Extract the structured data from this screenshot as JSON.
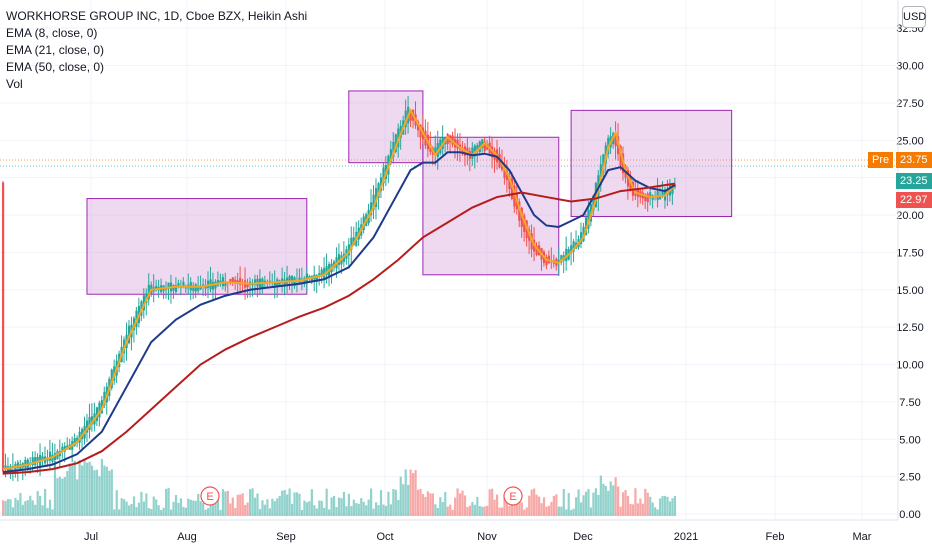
{
  "header": {
    "title": "WORKHORSE GROUP INC, 1D, Cboe BZX, Heikin Ashi",
    "indicators": [
      "EMA (8, close, 0)",
      "EMA (21, close, 0)",
      "EMA (50, close, 0)",
      "Vol"
    ],
    "currency_button": "USD"
  },
  "price_tags": [
    {
      "label": "Pre",
      "value": "23.75",
      "color": "#f57c00"
    },
    {
      "label": "",
      "value": "23.25",
      "color": "#26a69a"
    },
    {
      "label": "",
      "value": "22.97",
      "color": "#ef5350"
    }
  ],
  "chart_data": {
    "type": "candlestick",
    "title": "WORKHORSE GROUP INC, 1D, Cboe BZX, Heikin Ashi",
    "y_ticks": [
      "0.00",
      "2.50",
      "5.00",
      "7.50",
      "10.00",
      "12.50",
      "15.00",
      "17.50",
      "20.00",
      "22.50",
      "25.00",
      "27.50",
      "30.00",
      "32.50"
    ],
    "ylim": [
      0,
      32.5
    ],
    "x_ticks": [
      "Jul",
      "Aug",
      "Sep",
      "Oct",
      "Nov",
      "Dec",
      "2021",
      "Feb",
      "Mar"
    ],
    "series": [
      {
        "name": "EMA (8, close, 0)",
        "color": "#f5a623",
        "values": [
          [
            0,
            3.0
          ],
          [
            10,
            3.3
          ],
          [
            20,
            3.8
          ],
          [
            30,
            4.8
          ],
          [
            40,
            7.0
          ],
          [
            50,
            11.5
          ],
          [
            60,
            15.0
          ],
          [
            70,
            15.2
          ],
          [
            80,
            15.2
          ],
          [
            90,
            15.5
          ],
          [
            100,
            15.4
          ],
          [
            110,
            15.5
          ],
          [
            120,
            15.6
          ],
          [
            130,
            16.0
          ],
          [
            140,
            17.5
          ],
          [
            150,
            20.5
          ],
          [
            160,
            25.0
          ],
          [
            165,
            27.0
          ],
          [
            170,
            25.5
          ],
          [
            175,
            24.0
          ],
          [
            180,
            25.2
          ],
          [
            185,
            24.5
          ],
          [
            190,
            24.0
          ],
          [
            195,
            24.8
          ],
          [
            200,
            24.0
          ],
          [
            205,
            22.5
          ],
          [
            210,
            20.0
          ],
          [
            215,
            18.0
          ],
          [
            220,
            17.0
          ],
          [
            225,
            16.8
          ],
          [
            230,
            17.5
          ],
          [
            235,
            18.5
          ],
          [
            240,
            21.0
          ],
          [
            245,
            24.5
          ],
          [
            248,
            25.5
          ],
          [
            252,
            23.0
          ],
          [
            256,
            21.5
          ],
          [
            262,
            21.2
          ],
          [
            268,
            21.3
          ],
          [
            272,
            22.0
          ]
        ]
      },
      {
        "name": "EMA (21, close, 0)",
        "color": "#1e3a8a",
        "values": [
          [
            0,
            2.8
          ],
          [
            10,
            3.0
          ],
          [
            20,
            3.3
          ],
          [
            30,
            4.0
          ],
          [
            40,
            5.5
          ],
          [
            50,
            8.5
          ],
          [
            60,
            11.5
          ],
          [
            70,
            13.0
          ],
          [
            80,
            14.0
          ],
          [
            90,
            14.6
          ],
          [
            100,
            15.0
          ],
          [
            110,
            15.2
          ],
          [
            120,
            15.4
          ],
          [
            130,
            15.7
          ],
          [
            140,
            16.5
          ],
          [
            150,
            18.5
          ],
          [
            160,
            21.5
          ],
          [
            165,
            23.0
          ],
          [
            170,
            23.5
          ],
          [
            175,
            23.5
          ],
          [
            180,
            24.2
          ],
          [
            185,
            24.2
          ],
          [
            190,
            24.0
          ],
          [
            195,
            24.1
          ],
          [
            200,
            23.9
          ],
          [
            205,
            23.0
          ],
          [
            210,
            21.5
          ],
          [
            215,
            20.0
          ],
          [
            220,
            19.3
          ],
          [
            225,
            19.2
          ],
          [
            230,
            19.6
          ],
          [
            235,
            20.0
          ],
          [
            240,
            21.5
          ],
          [
            245,
            23.0
          ],
          [
            250,
            23.2
          ],
          [
            256,
            22.3
          ],
          [
            262,
            21.8
          ],
          [
            268,
            21.6
          ],
          [
            272,
            22.0
          ]
        ]
      },
      {
        "name": "EMA (50, close, 0)",
        "color": "#b71c1c",
        "values": [
          [
            0,
            2.7
          ],
          [
            10,
            2.8
          ],
          [
            20,
            3.0
          ],
          [
            30,
            3.4
          ],
          [
            40,
            4.2
          ],
          [
            50,
            5.5
          ],
          [
            60,
            7.0
          ],
          [
            70,
            8.5
          ],
          [
            80,
            10.0
          ],
          [
            90,
            11.0
          ],
          [
            100,
            11.8
          ],
          [
            110,
            12.5
          ],
          [
            120,
            13.2
          ],
          [
            130,
            13.8
          ],
          [
            140,
            14.6
          ],
          [
            150,
            15.7
          ],
          [
            160,
            17.0
          ],
          [
            170,
            18.5
          ],
          [
            180,
            19.5
          ],
          [
            190,
            20.5
          ],
          [
            200,
            21.2
          ],
          [
            210,
            21.5
          ],
          [
            220,
            21.2
          ],
          [
            230,
            20.9
          ],
          [
            240,
            21.1
          ],
          [
            250,
            21.6
          ],
          [
            260,
            21.8
          ],
          [
            272,
            22.1
          ]
        ]
      }
    ],
    "rectangles": [
      {
        "x0": 34,
        "x1": 123,
        "y0": 14.7,
        "y1": 21.1
      },
      {
        "x0": 140,
        "x1": 170,
        "y0": 23.5,
        "y1": 28.3
      },
      {
        "x0": 170,
        "x1": 225,
        "y0": 16.0,
        "y1": 25.2
      },
      {
        "x0": 230,
        "x1": 295,
        "y0": 19.9,
        "y1": 27.0
      }
    ],
    "legend_position": "top-left",
    "grid": true
  }
}
